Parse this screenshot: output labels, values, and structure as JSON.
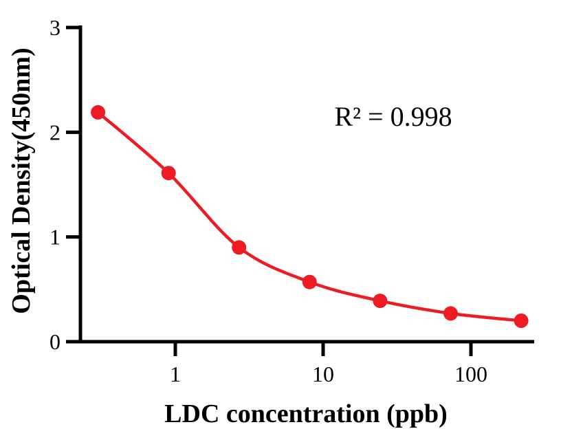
{
  "chart_data": {
    "type": "scatter",
    "title": "",
    "xlabel": "LDC concentration (ppb)",
    "ylabel": "Optical Density(450nm)",
    "x_scale": "log10",
    "x": [
      0.3,
      0.9,
      2.7,
      8.1,
      24.3,
      72.9,
      218.7
    ],
    "y": [
      2.19,
      1.61,
      0.9,
      0.57,
      0.39,
      0.27,
      0.2
    ],
    "curve": "smooth fit through points",
    "annotation": "R² = 0.998",
    "x_ticks": [
      1,
      10,
      100
    ],
    "y_ticks": [
      0,
      1,
      2,
      3
    ],
    "xlim": [
      0.23,
      275
    ],
    "ylim": [
      0,
      3
    ],
    "legend": "none",
    "grid": "off",
    "marker_color": "#ed1c24",
    "line_color": "#ed1c24",
    "axis_color": "#000000"
  }
}
